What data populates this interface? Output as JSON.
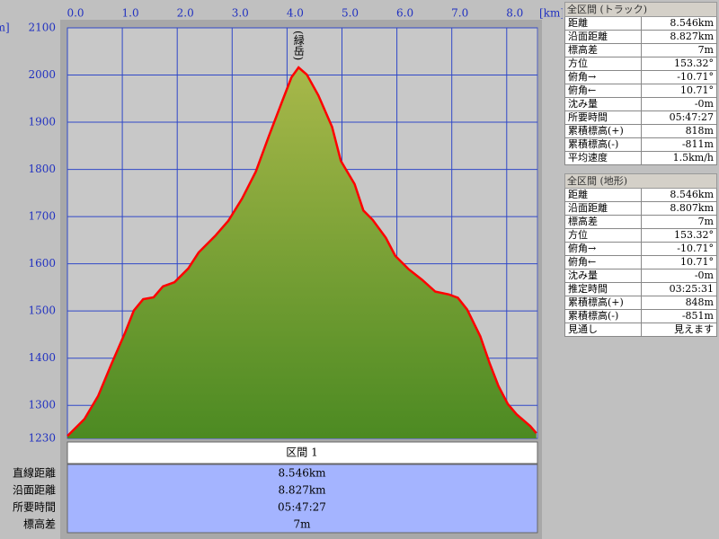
{
  "chart_data": {
    "type": "area",
    "xlabel": "[km]",
    "ylabel": "[m]",
    "annotation": "(緑岳)",
    "annotation_x": 4.21,
    "x": [
      0,
      0.31,
      0.56,
      0.8,
      1.05,
      1.21,
      1.38,
      1.57,
      1.74,
      1.95,
      2.2,
      2.39,
      2.69,
      2.93,
      3.18,
      3.43,
      3.67,
      3.92,
      4.08,
      4.21,
      4.36,
      4.57,
      4.82,
      4.98,
      5.23,
      5.39,
      5.56,
      5.8,
      5.97,
      6.21,
      6.46,
      6.7,
      6.95,
      7.11,
      7.28,
      7.52,
      7.69,
      7.85,
      8.02,
      8.18,
      8.43,
      8.54
    ],
    "values": [
      1235,
      1271,
      1320,
      1387,
      1454,
      1501,
      1525,
      1529,
      1552,
      1561,
      1590,
      1624,
      1659,
      1691,
      1738,
      1795,
      1871,
      1947,
      1995,
      2016,
      2001,
      1957,
      1890,
      1818,
      1769,
      1713,
      1693,
      1655,
      1617,
      1589,
      1566,
      1541,
      1535,
      1528,
      1503,
      1446,
      1389,
      1341,
      1303,
      1281,
      1256,
      1241
    ],
    "color": "#ff0000",
    "xlim": [
      0,
      8.56
    ],
    "ylim": [
      1230,
      2100
    ],
    "xticks": [
      {
        "value": 0,
        "label": "0.0"
      },
      {
        "value": 1,
        "label": "1.0"
      },
      {
        "value": 2,
        "label": "2.0"
      },
      {
        "value": 3,
        "label": "3.0"
      },
      {
        "value": 4,
        "label": "4.0"
      },
      {
        "value": 5,
        "label": "5.0"
      },
      {
        "value": 6,
        "label": "6.0"
      },
      {
        "value": 7,
        "label": "7.0"
      },
      {
        "value": 8,
        "label": "8.0"
      }
    ],
    "yticks": [
      1230,
      1300,
      1400,
      1500,
      1600,
      1700,
      1800,
      1900,
      2000,
      2100
    ],
    "grid": true
  },
  "section_table": {
    "header": "区間 1",
    "rows": [
      [
        "直線距離",
        "8.546km"
      ],
      [
        "沿面距離",
        "8.827km"
      ],
      [
        "所要時間",
        "05:47:27"
      ],
      [
        "標高差",
        "7m"
      ]
    ]
  },
  "track_panel": {
    "title": "全区間 (トラック)",
    "rows": [
      [
        "距離",
        "8.546km"
      ],
      [
        "沿面距離",
        "8.827km"
      ],
      [
        "標高差",
        "7m"
      ],
      [
        "方位",
        "153.32°"
      ],
      [
        "俯角→",
        "-10.71°"
      ],
      [
        "俯角←",
        "10.71°"
      ],
      [
        "沈み量",
        "-0m"
      ],
      [
        "所要時間",
        "05:47:27"
      ],
      [
        "累積標高(+)",
        "818m"
      ],
      [
        "累積標高(-)",
        "-811m"
      ],
      [
        "平均速度",
        "1.5km/h"
      ]
    ]
  },
  "terrain_panel": {
    "title": "全区間 (地形)",
    "rows": [
      [
        "距離",
        "8.546km"
      ],
      [
        "沿面距離",
        "8.807km"
      ],
      [
        "標高差",
        "7m"
      ],
      [
        "方位",
        "153.32°"
      ],
      [
        "俯角→",
        "-10.71°"
      ],
      [
        "俯角←",
        "10.71°"
      ],
      [
        "沈み量",
        "-0m"
      ],
      [
        "推定時間",
        "03:25:31"
      ],
      [
        "累積標高(+)",
        "848m"
      ],
      [
        "累積標高(-)",
        "-851m"
      ],
      [
        "見通し",
        "見えます"
      ]
    ]
  }
}
